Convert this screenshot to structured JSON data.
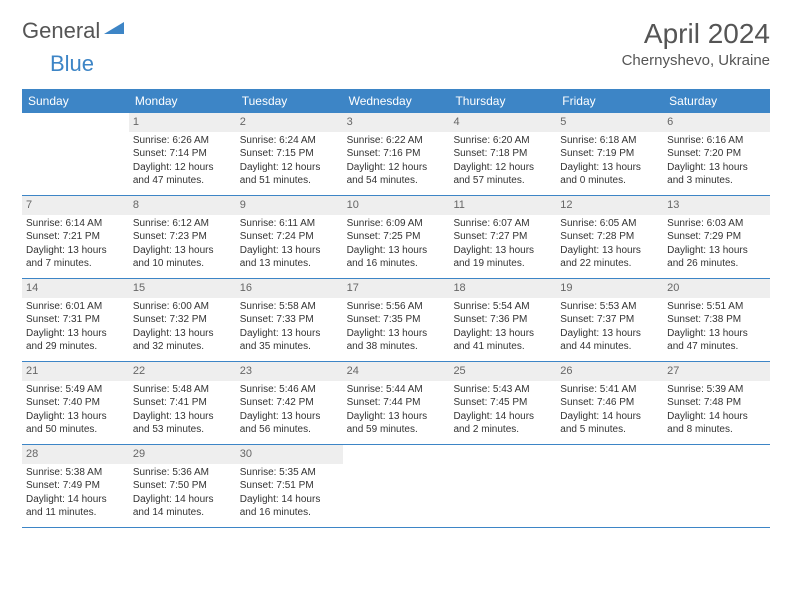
{
  "logo": {
    "text1": "General",
    "text2": "Blue"
  },
  "title": "April 2024",
  "location": "Chernyshevo, Ukraine",
  "colors": {
    "header_bg": "#3d85c6",
    "daynum_bg": "#eeeeee",
    "text": "#333333",
    "muted": "#666666"
  },
  "weekdays": [
    "Sunday",
    "Monday",
    "Tuesday",
    "Wednesday",
    "Thursday",
    "Friday",
    "Saturday"
  ],
  "weeks": [
    [
      {
        "empty": true
      },
      {
        "n": "1",
        "sr": "Sunrise: 6:26 AM",
        "ss": "Sunset: 7:14 PM",
        "d1": "Daylight: 12 hours",
        "d2": "and 47 minutes."
      },
      {
        "n": "2",
        "sr": "Sunrise: 6:24 AM",
        "ss": "Sunset: 7:15 PM",
        "d1": "Daylight: 12 hours",
        "d2": "and 51 minutes."
      },
      {
        "n": "3",
        "sr": "Sunrise: 6:22 AM",
        "ss": "Sunset: 7:16 PM",
        "d1": "Daylight: 12 hours",
        "d2": "and 54 minutes."
      },
      {
        "n": "4",
        "sr": "Sunrise: 6:20 AM",
        "ss": "Sunset: 7:18 PM",
        "d1": "Daylight: 12 hours",
        "d2": "and 57 minutes."
      },
      {
        "n": "5",
        "sr": "Sunrise: 6:18 AM",
        "ss": "Sunset: 7:19 PM",
        "d1": "Daylight: 13 hours",
        "d2": "and 0 minutes."
      },
      {
        "n": "6",
        "sr": "Sunrise: 6:16 AM",
        "ss": "Sunset: 7:20 PM",
        "d1": "Daylight: 13 hours",
        "d2": "and 3 minutes."
      }
    ],
    [
      {
        "n": "7",
        "sr": "Sunrise: 6:14 AM",
        "ss": "Sunset: 7:21 PM",
        "d1": "Daylight: 13 hours",
        "d2": "and 7 minutes."
      },
      {
        "n": "8",
        "sr": "Sunrise: 6:12 AM",
        "ss": "Sunset: 7:23 PM",
        "d1": "Daylight: 13 hours",
        "d2": "and 10 minutes."
      },
      {
        "n": "9",
        "sr": "Sunrise: 6:11 AM",
        "ss": "Sunset: 7:24 PM",
        "d1": "Daylight: 13 hours",
        "d2": "and 13 minutes."
      },
      {
        "n": "10",
        "sr": "Sunrise: 6:09 AM",
        "ss": "Sunset: 7:25 PM",
        "d1": "Daylight: 13 hours",
        "d2": "and 16 minutes."
      },
      {
        "n": "11",
        "sr": "Sunrise: 6:07 AM",
        "ss": "Sunset: 7:27 PM",
        "d1": "Daylight: 13 hours",
        "d2": "and 19 minutes."
      },
      {
        "n": "12",
        "sr": "Sunrise: 6:05 AM",
        "ss": "Sunset: 7:28 PM",
        "d1": "Daylight: 13 hours",
        "d2": "and 22 minutes."
      },
      {
        "n": "13",
        "sr": "Sunrise: 6:03 AM",
        "ss": "Sunset: 7:29 PM",
        "d1": "Daylight: 13 hours",
        "d2": "and 26 minutes."
      }
    ],
    [
      {
        "n": "14",
        "sr": "Sunrise: 6:01 AM",
        "ss": "Sunset: 7:31 PM",
        "d1": "Daylight: 13 hours",
        "d2": "and 29 minutes."
      },
      {
        "n": "15",
        "sr": "Sunrise: 6:00 AM",
        "ss": "Sunset: 7:32 PM",
        "d1": "Daylight: 13 hours",
        "d2": "and 32 minutes."
      },
      {
        "n": "16",
        "sr": "Sunrise: 5:58 AM",
        "ss": "Sunset: 7:33 PM",
        "d1": "Daylight: 13 hours",
        "d2": "and 35 minutes."
      },
      {
        "n": "17",
        "sr": "Sunrise: 5:56 AM",
        "ss": "Sunset: 7:35 PM",
        "d1": "Daylight: 13 hours",
        "d2": "and 38 minutes."
      },
      {
        "n": "18",
        "sr": "Sunrise: 5:54 AM",
        "ss": "Sunset: 7:36 PM",
        "d1": "Daylight: 13 hours",
        "d2": "and 41 minutes."
      },
      {
        "n": "19",
        "sr": "Sunrise: 5:53 AM",
        "ss": "Sunset: 7:37 PM",
        "d1": "Daylight: 13 hours",
        "d2": "and 44 minutes."
      },
      {
        "n": "20",
        "sr": "Sunrise: 5:51 AM",
        "ss": "Sunset: 7:38 PM",
        "d1": "Daylight: 13 hours",
        "d2": "and 47 minutes."
      }
    ],
    [
      {
        "n": "21",
        "sr": "Sunrise: 5:49 AM",
        "ss": "Sunset: 7:40 PM",
        "d1": "Daylight: 13 hours",
        "d2": "and 50 minutes."
      },
      {
        "n": "22",
        "sr": "Sunrise: 5:48 AM",
        "ss": "Sunset: 7:41 PM",
        "d1": "Daylight: 13 hours",
        "d2": "and 53 minutes."
      },
      {
        "n": "23",
        "sr": "Sunrise: 5:46 AM",
        "ss": "Sunset: 7:42 PM",
        "d1": "Daylight: 13 hours",
        "d2": "and 56 minutes."
      },
      {
        "n": "24",
        "sr": "Sunrise: 5:44 AM",
        "ss": "Sunset: 7:44 PM",
        "d1": "Daylight: 13 hours",
        "d2": "and 59 minutes."
      },
      {
        "n": "25",
        "sr": "Sunrise: 5:43 AM",
        "ss": "Sunset: 7:45 PM",
        "d1": "Daylight: 14 hours",
        "d2": "and 2 minutes."
      },
      {
        "n": "26",
        "sr": "Sunrise: 5:41 AM",
        "ss": "Sunset: 7:46 PM",
        "d1": "Daylight: 14 hours",
        "d2": "and 5 minutes."
      },
      {
        "n": "27",
        "sr": "Sunrise: 5:39 AM",
        "ss": "Sunset: 7:48 PM",
        "d1": "Daylight: 14 hours",
        "d2": "and 8 minutes."
      }
    ],
    [
      {
        "n": "28",
        "sr": "Sunrise: 5:38 AM",
        "ss": "Sunset: 7:49 PM",
        "d1": "Daylight: 14 hours",
        "d2": "and 11 minutes."
      },
      {
        "n": "29",
        "sr": "Sunrise: 5:36 AM",
        "ss": "Sunset: 7:50 PM",
        "d1": "Daylight: 14 hours",
        "d2": "and 14 minutes."
      },
      {
        "n": "30",
        "sr": "Sunrise: 5:35 AM",
        "ss": "Sunset: 7:51 PM",
        "d1": "Daylight: 14 hours",
        "d2": "and 16 minutes."
      },
      {
        "empty": true
      },
      {
        "empty": true
      },
      {
        "empty": true
      },
      {
        "empty": true
      }
    ]
  ]
}
